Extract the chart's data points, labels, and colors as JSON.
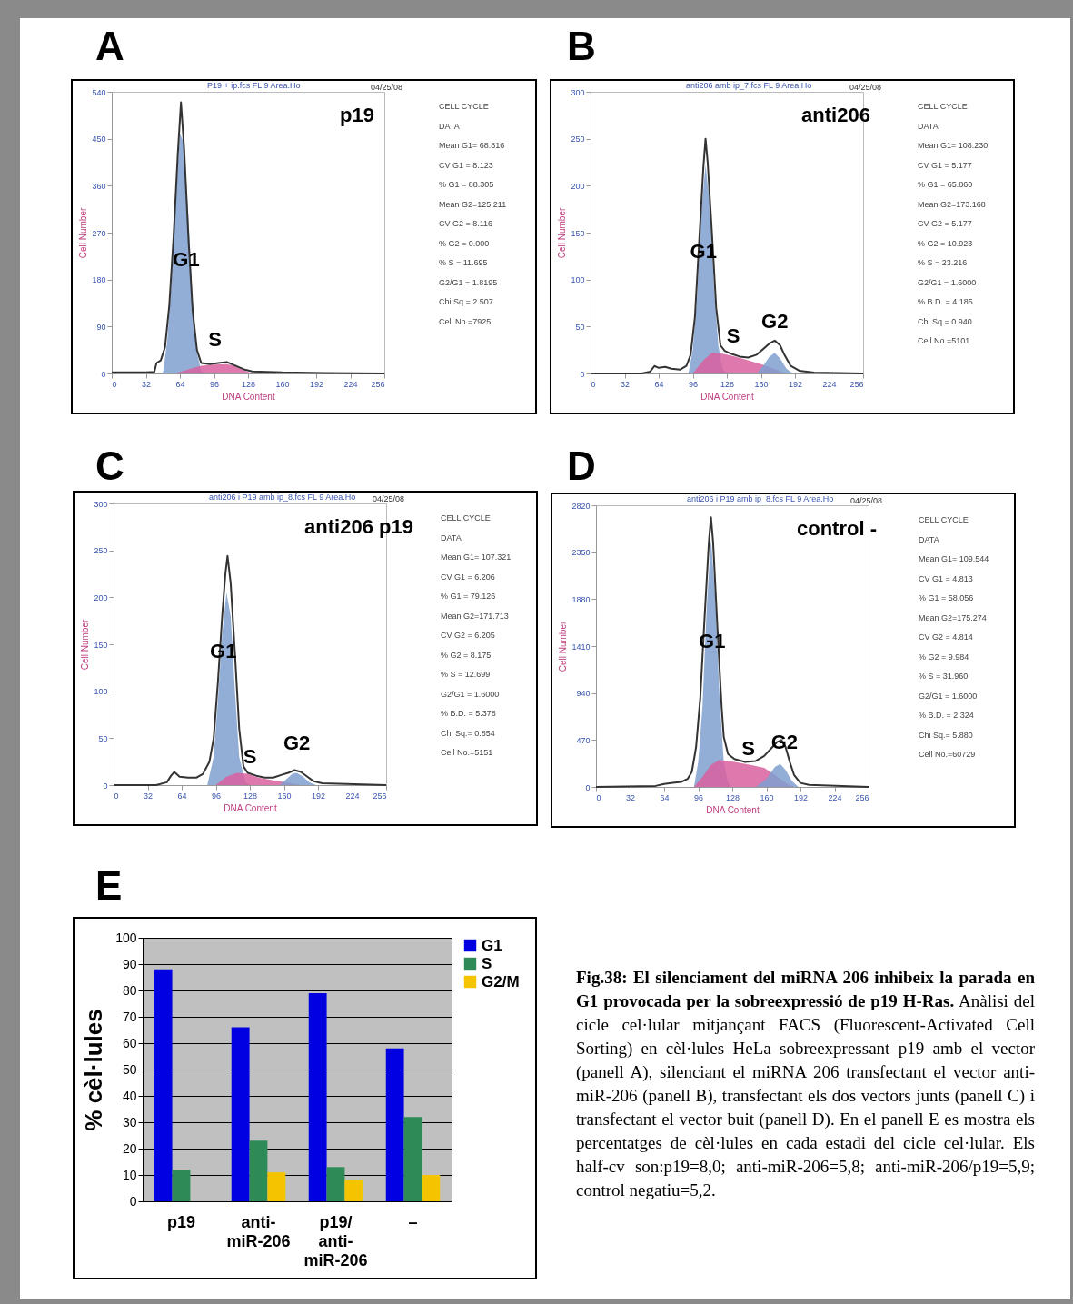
{
  "chart_data": [
    {
      "type": "line",
      "title": "A",
      "subtitle": "P19 + ip.fcs FL 9 Area.Ho",
      "xlabel": "DNA Content",
      "ylabel": "Cell Number",
      "xlim": [
        0,
        256
      ],
      "xticks": [
        0,
        32,
        64,
        96,
        128,
        160,
        192,
        224,
        256
      ],
      "ylim": [
        0,
        540
      ],
      "yticks": [
        0,
        90,
        180,
        270,
        360,
        450,
        540
      ],
      "series": [
        {
          "type": "area",
          "color": "#7f9fcf",
          "x": [
            48,
            52,
            56,
            60,
            64,
            68,
            72,
            76,
            80,
            84,
            88
          ],
          "values": [
            0,
            60,
            170,
            330,
            460,
            440,
            300,
            140,
            40,
            5,
            0
          ]
        },
        {
          "type": "area",
          "color": "#d9609f",
          "x": [
            60,
            72,
            84,
            96,
            108,
            116,
            124,
            132
          ],
          "values": [
            0,
            8,
            15,
            17,
            18,
            14,
            6,
            0
          ]
        },
        {
          "type": "line",
          "color": "#333333",
          "x": [
            0,
            32,
            40,
            42,
            46,
            50,
            54,
            58,
            62,
            65,
            68,
            72,
            76,
            80,
            84,
            92,
            100,
            108,
            116,
            124,
            132,
            160,
            200,
            256
          ],
          "values": [
            2,
            2,
            3,
            20,
            25,
            50,
            130,
            260,
            420,
            520,
            430,
            260,
            120,
            45,
            20,
            18,
            20,
            22,
            15,
            8,
            4,
            2,
            1,
            0
          ]
        }
      ],
      "annotations": [
        "04/25/08",
        "p19",
        "CELL CYCLE",
        "DATA",
        "Mean G1= 68.816",
        "CV G1 = 8.123",
        "% G1 = 88.305",
        "Mean G2=125.211",
        "CV G2 = 8.116",
        "% G2 = 0.000",
        "% S = 11.695",
        "G2/G1 = 1.8195",
        "Chi Sq.= 2.507",
        "Cell No.=7925",
        "G1",
        "S"
      ]
    },
    {
      "type": "line",
      "title": "B",
      "subtitle": "anti206 amb ip_7.fcs FL 9 Area.Ho",
      "xlabel": "DNA Content",
      "ylabel": "Cell Number",
      "xlim": [
        0,
        256
      ],
      "xticks": [
        0,
        32,
        64,
        96,
        128,
        160,
        192,
        224,
        256
      ],
      "ylim": [
        0,
        300
      ],
      "yticks": [
        0,
        50,
        100,
        150,
        200,
        250,
        300
      ],
      "series": [
        {
          "type": "area",
          "color": "#7f9fcf",
          "x": [
            92,
            96,
            100,
            104,
            108,
            112,
            116,
            120,
            124,
            128
          ],
          "values": [
            0,
            25,
            80,
            170,
            222,
            180,
            90,
            30,
            5,
            0
          ]
        },
        {
          "type": "area",
          "color": "#d9609f",
          "x": [
            96,
            106,
            114,
            124,
            136,
            148,
            160,
            172,
            184
          ],
          "values": [
            0,
            14,
            22,
            21,
            18,
            14,
            10,
            5,
            0
          ]
        },
        {
          "type": "area",
          "color": "#7f9fcf",
          "x": [
            156,
            162,
            168,
            173,
            178,
            184,
            190
          ],
          "values": [
            0,
            8,
            18,
            22,
            16,
            5,
            0
          ]
        },
        {
          "type": "line",
          "color": "#333333",
          "x": [
            0,
            48,
            56,
            60,
            64,
            70,
            76,
            84,
            90,
            94,
            98,
            102,
            106,
            108,
            110,
            114,
            118,
            122,
            126,
            132,
            140,
            148,
            156,
            162,
            168,
            173,
            178,
            182,
            188,
            196,
            210,
            256
          ],
          "values": [
            0,
            0,
            2,
            8,
            6,
            7,
            5,
            4,
            8,
            20,
            60,
            140,
            220,
            250,
            225,
            150,
            70,
            30,
            24,
            21,
            18,
            17,
            20,
            26,
            32,
            35,
            30,
            20,
            8,
            3,
            1,
            0
          ]
        }
      ],
      "annotations": [
        "04/25/08",
        "anti206",
        "CELL CYCLE",
        "DATA",
        "Mean G1= 108.230",
        "CV G1 = 5.177",
        "% G1 = 65.860",
        "Mean G2=173.168",
        "CV G2 = 5.177",
        "% G2 = 10.923",
        "% S = 23.216",
        "G2/G1 = 1.6000",
        "% B.D. = 4.185",
        "Chi Sq.= 0.940",
        "Cell No.=5101",
        "G1",
        "S",
        "G2"
      ]
    },
    {
      "type": "line",
      "title": "C",
      "subtitle": "anti206 i P19 amb ip_8.fcs FL 9 Area.Ho",
      "xlabel": "DNA Content",
      "ylabel": "Cell Number",
      "xlim": [
        0,
        256
      ],
      "xticks": [
        0,
        32,
        64,
        96,
        128,
        160,
        192,
        224,
        256
      ],
      "ylim": [
        0,
        300
      ],
      "yticks": [
        0,
        50,
        100,
        150,
        200,
        250,
        300
      ],
      "series": [
        {
          "type": "area",
          "color": "#7f9fcf",
          "x": [
            88,
            94,
            98,
            102,
            106,
            110,
            114,
            118,
            124,
            128
          ],
          "values": [
            0,
            30,
            90,
            160,
            205,
            180,
            100,
            30,
            3,
            0
          ]
        },
        {
          "type": "area",
          "color": "#d9609f",
          "x": [
            96,
            106,
            116,
            126,
            136,
            150,
            162,
            176
          ],
          "values": [
            0,
            9,
            13,
            12,
            8,
            5,
            3,
            0
          ]
        },
        {
          "type": "area",
          "color": "#7f9fcf",
          "x": [
            156,
            162,
            168,
            172,
            178,
            184,
            190
          ],
          "values": [
            0,
            6,
            12,
            13,
            9,
            3,
            0
          ]
        },
        {
          "type": "line",
          "color": "#333333",
          "x": [
            0,
            40,
            50,
            54,
            57,
            62,
            70,
            78,
            84,
            90,
            94,
            98,
            102,
            105,
            107,
            110,
            114,
            118,
            122,
            126,
            134,
            142,
            150,
            158,
            164,
            170,
            176,
            182,
            188,
            196,
            256
          ],
          "values": [
            0,
            0,
            3,
            10,
            14,
            9,
            8,
            8,
            12,
            25,
            50,
            110,
            180,
            225,
            244,
            215,
            140,
            60,
            20,
            13,
            10,
            8,
            8,
            11,
            13,
            16,
            14,
            9,
            4,
            2,
            0
          ]
        }
      ],
      "annotations": [
        "04/25/08",
        "anti206 p19",
        "CELL CYCLE",
        "DATA",
        "Mean G1= 107.321",
        "CV G1 = 6.206",
        "% G1 = 79.126",
        "Mean G2=171.713",
        "CV G2 = 6.205",
        "% G2 = 8.175",
        "% S = 12.699",
        "G2/G1 = 1.6000",
        "% B.D. = 5.378",
        "Chi Sq.= 0.854",
        "Cell No.=5151",
        "G1",
        "S",
        "G2"
      ]
    },
    {
      "type": "line",
      "title": "D",
      "subtitle": "anti206 i P19 amb ip_8.fcs FL 9 Area.Ho",
      "xlabel": "DNA Content",
      "ylabel": "Cell Number",
      "xlim": [
        0,
        256
      ],
      "xticks": [
        0,
        32,
        64,
        96,
        128,
        160,
        192,
        224,
        256
      ],
      "ylim": [
        0,
        2820
      ],
      "yticks": [
        0,
        470,
        940,
        1410,
        1880,
        2350,
        2820
      ],
      "series": [
        {
          "type": "area",
          "color": "#7f9fcf",
          "x": [
            92,
            96,
            100,
            104,
            108,
            112,
            116,
            120,
            124,
            128
          ],
          "values": [
            0,
            250,
            800,
            1800,
            2480,
            1900,
            900,
            250,
            40,
            0
          ]
        },
        {
          "type": "area",
          "color": "#d9609f",
          "x": [
            92,
            100,
            108,
            116,
            130,
            145,
            158,
            168,
            178,
            186
          ],
          "values": [
            0,
            100,
            220,
            270,
            250,
            220,
            190,
            120,
            40,
            0
          ]
        },
        {
          "type": "area",
          "color": "#7f9fcf",
          "x": [
            150,
            160,
            168,
            173,
            178,
            184,
            190
          ],
          "values": [
            0,
            80,
            200,
            230,
            170,
            60,
            0
          ]
        },
        {
          "type": "line",
          "color": "#333333",
          "x": [
            0,
            56,
            64,
            72,
            80,
            86,
            90,
            94,
            98,
            102,
            106,
            108,
            110,
            114,
            118,
            120,
            124,
            130,
            140,
            150,
            158,
            164,
            170,
            174,
            178,
            182,
            186,
            192,
            200,
            256
          ],
          "values": [
            0,
            10,
            30,
            40,
            50,
            80,
            150,
            400,
            900,
            1700,
            2450,
            2700,
            2450,
            1600,
            800,
            500,
            330,
            280,
            250,
            260,
            310,
            380,
            450,
            470,
            400,
            250,
            120,
            40,
            20,
            0
          ]
        }
      ],
      "annotations": [
        "04/25/08",
        "control -",
        "CELL CYCLE",
        "DATA",
        "Mean G1= 109.544",
        "CV G1 = 4.813",
        "% G1 = 58.056",
        "Mean G2=175.274",
        "CV G2 = 4.814",
        "% G2 = 9.984",
        "% S = 31.960",
        "G2/G1 = 1.6000",
        "% B.D. = 2.324",
        "Chi Sq.= 5.880",
        "Cell No.=60729",
        "G1",
        "S",
        "G2"
      ]
    },
    {
      "type": "bar",
      "title": "E",
      "ylabel": "% cèl·lules",
      "categories": [
        "p19",
        "anti-miR-206",
        "p19/anti-miR-206",
        "–"
      ],
      "ylim": [
        0,
        100
      ],
      "yticks": [
        0,
        10,
        20,
        30,
        40,
        50,
        60,
        70,
        80,
        90,
        100
      ],
      "grid": "y",
      "legend": "right",
      "series": [
        {
          "name": "G1",
          "color": "#0000e0",
          "values": [
            88,
            66,
            79,
            58
          ]
        },
        {
          "name": "S",
          "color": "#2e8b57",
          "values": [
            12,
            23,
            13,
            32
          ]
        },
        {
          "name": "G2/M",
          "color": "#f5c400",
          "values": [
            0,
            11,
            8,
            10
          ]
        }
      ],
      "annotations": [
        "Fig.38: El silenciament del miRNA 206 inhibeix la parada en G1 provocada per la sobreexpressió de p19 H-Ras.",
        "Anàlisi del cicle cel·lular mitjançant FACS (Fluorescent-Activated Cell Sorting) en cèl·lules HeLa sobreexpressant p19 amb el vector (panell A), silenciant el miRNA 206 transfectant el vector anti-miR-206 (panell B), transfectant els dos vectors junts (panell C) i transfectant el vector buit (panell D). En el panell E es mostra els percentatges de cèl·lules en cada estadi del cicle cel·lular. Els half-cv son:p19=8,0; anti-miR-206=5,8; anti-miR-206/p19=5,9; control negatiu=5,2."
      ]
    }
  ]
}
